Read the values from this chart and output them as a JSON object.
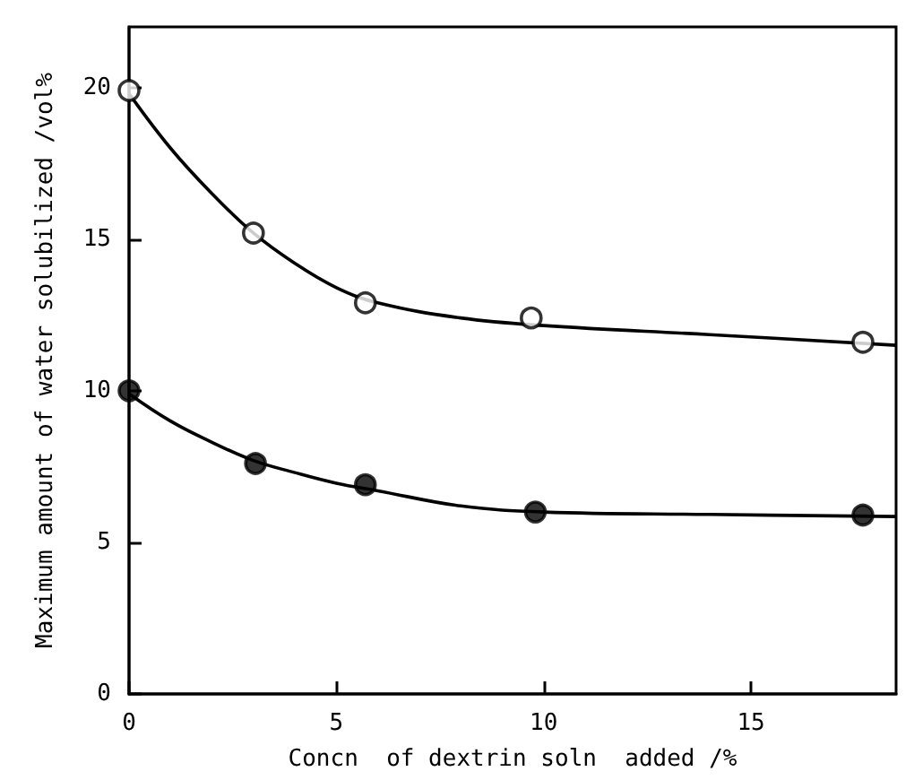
{
  "chart_data": {
    "type": "line",
    "xlabel": "Concn  of dextrin soln  added /%",
    "ylabel": "Maximum amount of water solubilized /vol%",
    "xlim": [
      0,
      18.5
    ],
    "ylim": [
      0,
      22
    ],
    "xticks": [
      0,
      5,
      10,
      15
    ],
    "yticks": [
      0,
      5,
      10,
      15,
      20
    ],
    "grid": false,
    "series": [
      {
        "type": "scatter",
        "marker": "circle",
        "color": "#ffffff",
        "x": [
          0,
          3.0,
          5.7,
          9.7,
          17.7
        ],
        "values": [
          19.9,
          15.2,
          12.9,
          12.4,
          11.6
        ]
      },
      {
        "type": "scatter",
        "marker": "circle",
        "color": "#000000",
        "x": [
          0,
          3.05,
          5.7,
          9.8,
          17.7
        ],
        "values": [
          10,
          7.6,
          6.9,
          6.0,
          5.9
        ]
      },
      {
        "line_style": "solid",
        "color": "#000000",
        "x": [
          0,
          1,
          2,
          3,
          4,
          5,
          6,
          8,
          10,
          14,
          18.5
        ],
        "values": [
          19.8,
          18.0,
          16.5,
          15.2,
          14.2,
          13.4,
          12.9,
          12.4,
          12.15,
          11.85,
          11.5
        ]
      },
      {
        "line_style": "solid",
        "color": "#000000",
        "x": [
          0,
          1,
          2,
          3,
          4,
          5,
          6,
          8,
          10,
          14,
          18.5
        ],
        "values": [
          9.9,
          9.0,
          8.3,
          7.7,
          7.3,
          6.95,
          6.7,
          6.2,
          6.0,
          5.92,
          5.85
        ]
      }
    ]
  }
}
